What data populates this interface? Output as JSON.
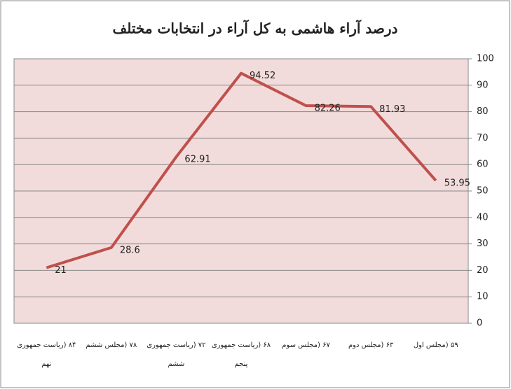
{
  "chart_data": {
    "type": "line",
    "title": "درصد آراء هاشمی به کل آراء در انتخابات مختلف",
    "categories": [
      "۸۴ (ریاست جمهوری نهم",
      "۷۸ (مجلس ششم",
      "۷۲ (ریاست جمهوری ششم",
      "۶۸ (ریاست جمهوری پنجم",
      "۶۷ (مجلس سوم",
      "۶۳ (مجلس دوم",
      "۵۹ (مجلس اول"
    ],
    "values": [
      21,
      28.6,
      62.91,
      94.52,
      82.26,
      81.93,
      53.95
    ],
    "color": "#c0504d",
    "plot_background": "#f2dcdb",
    "ylim": [
      0,
      100
    ],
    "yticks": [
      0,
      10,
      20,
      30,
      40,
      50,
      60,
      70,
      80,
      90,
      100
    ],
    "grid": true
  }
}
